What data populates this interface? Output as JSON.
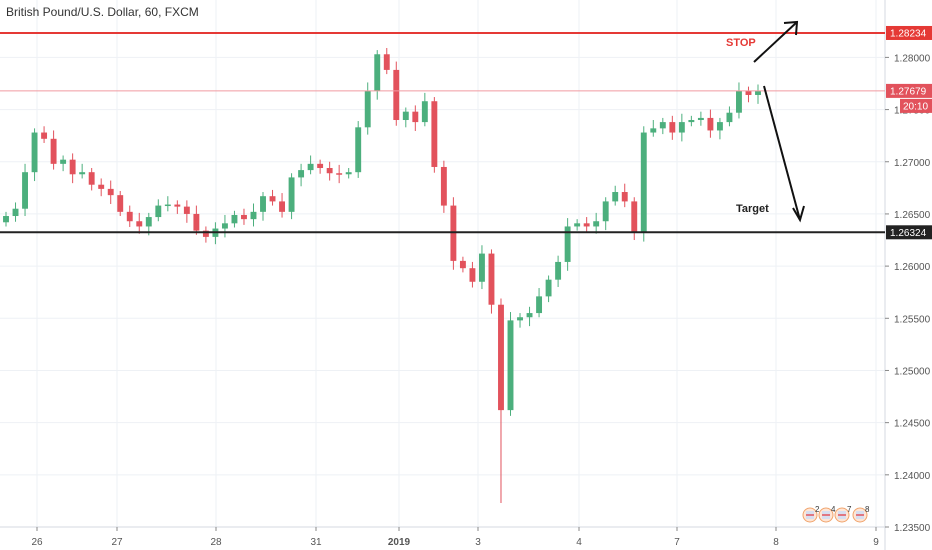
{
  "header": {
    "title": "British Pound/U.S. Dollar, 60, FXCM"
  },
  "colors": {
    "up": "#4caf7d",
    "down": "#e2525c",
    "stop": "#e53935",
    "target": "#222222",
    "grid": "#eef1f5"
  },
  "levels": {
    "stop": {
      "value": 1.28234,
      "label": "1.28234"
    },
    "current": {
      "value": 1.27679,
      "label": "1.27679",
      "countdown": "20:10"
    },
    "target": {
      "value": 1.26324,
      "label": "1.26324"
    }
  },
  "annotations": {
    "stop_text": "STOP",
    "target_text": "Target"
  },
  "events": {
    "labels": [
      "2",
      "4",
      "7",
      "8"
    ]
  },
  "chart_data": {
    "type": "candlestick",
    "title": "British Pound/U.S. Dollar, 60, FXCM",
    "ylim": [
      1.235,
      1.2855
    ],
    "yticks": [
      "1.28000",
      "1.27500",
      "1.27000",
      "1.26500",
      "1.26000",
      "1.25500",
      "1.25000",
      "1.24500",
      "1.24000",
      "1.23500"
    ],
    "yticks_values": [
      1.28,
      1.275,
      1.27,
      1.265,
      1.26,
      1.255,
      1.25,
      1.245,
      1.24,
      1.235
    ],
    "xticks": [
      "26",
      "27",
      "28",
      "31",
      "2019",
      "3",
      "4",
      "7",
      "8",
      "9"
    ],
    "grid": true,
    "approx_close": [
      1.2648,
      1.2655,
      1.269,
      1.2728,
      1.2722,
      1.2698,
      1.2702,
      1.2688,
      1.269,
      1.2678,
      1.2674,
      1.2668,
      1.2652,
      1.2643,
      1.2638,
      1.2647,
      1.2658,
      1.2659,
      1.2657,
      1.265,
      1.2634,
      1.2628,
      1.2636,
      1.2641,
      1.2649,
      1.2645,
      1.2652,
      1.2667,
      1.2662,
      1.2652,
      1.2685,
      1.2692,
      1.2698,
      1.2694,
      1.2689,
      1.2688,
      1.269,
      1.2733,
      1.2768,
      1.2803,
      1.2788,
      1.274,
      1.2748,
      1.2738,
      1.2758,
      1.2695,
      1.2658,
      1.2605,
      1.2598,
      1.2585,
      1.2612,
      1.2563,
      1.2462,
      1.2548,
      1.2551,
      1.2555,
      1.2571,
      1.2587,
      1.2604,
      1.2638,
      1.2641,
      1.2638,
      1.2643,
      1.2662,
      1.2671,
      1.2662,
      1.2632,
      1.2728,
      1.2732,
      1.2738,
      1.2728,
      1.2738,
      1.274,
      1.2742,
      1.273,
      1.2738,
      1.2747,
      1.2768,
      1.2764,
      1.2768
    ]
  }
}
